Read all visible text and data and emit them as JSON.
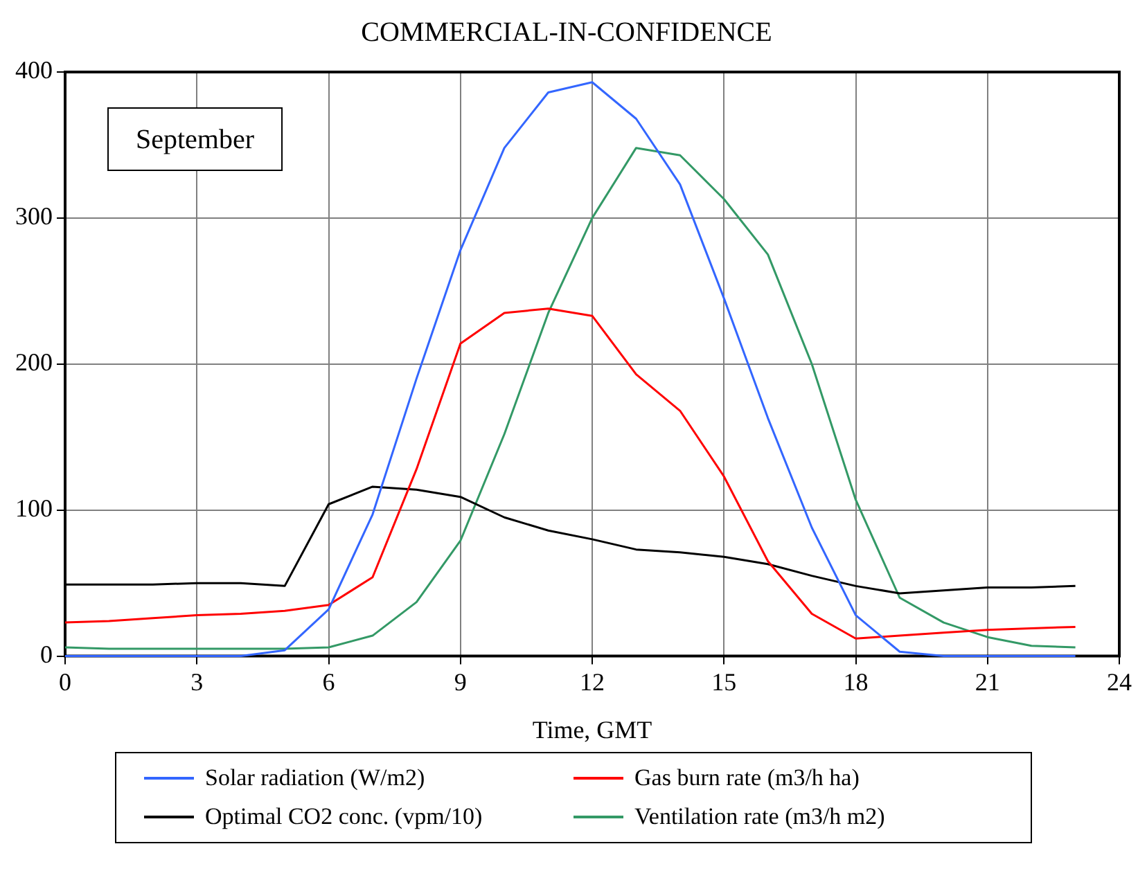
{
  "chart_data": {
    "type": "line",
    "title": "COMMERCIAL-IN-CONFIDENCE",
    "xlabel": "Time, GMT",
    "x": [
      0,
      1,
      2,
      3,
      4,
      5,
      6,
      7,
      8,
      9,
      10,
      11,
      12,
      13,
      14,
      15,
      16,
      17,
      18,
      19,
      20,
      21,
      22,
      23
    ],
    "series": [
      {
        "name": "Solar radiation (W/m2)",
        "color": "#3366ff",
        "values": [
          0,
          0,
          0,
          0,
          0,
          4,
          32,
          97,
          190,
          278,
          348,
          386,
          393,
          368,
          323,
          245,
          163,
          88,
          28,
          3,
          0,
          0,
          0,
          0
        ]
      },
      {
        "name": "Gas burn rate (m3/h ha)",
        "color": "#ff0000",
        "values": [
          23,
          24,
          26,
          28,
          29,
          31,
          35,
          54,
          128,
          214,
          235,
          238,
          233,
          193,
          168,
          123,
          65,
          29,
          12,
          14,
          16,
          18,
          19,
          20
        ]
      },
      {
        "name": "Optimal CO2 conc. (vpm/10)",
        "color": "#000000",
        "values": [
          49,
          49,
          49,
          50,
          50,
          48,
          104,
          116,
          114,
          109,
          95,
          86,
          80,
          73,
          71,
          68,
          63,
          55,
          48,
          43,
          45,
          47,
          47,
          48
        ]
      },
      {
        "name": "Ventilation rate (m3/h m2)",
        "color": "#339966",
        "values": [
          6,
          5,
          5,
          5,
          5,
          5,
          6,
          14,
          37,
          79,
          152,
          235,
          300,
          348,
          343,
          313,
          275,
          200,
          107,
          40,
          23,
          13,
          7,
          6
        ]
      }
    ],
    "xlim": [
      0,
      24
    ],
    "xticks": [
      0,
      3,
      6,
      9,
      12,
      15,
      18,
      21,
      24
    ],
    "ylim": [
      0,
      400
    ],
    "yticks": [
      0,
      100,
      200,
      300,
      400
    ],
    "grid": true,
    "legend": "bottom",
    "marker": "none",
    "line_style": "solid",
    "annotations": [
      "September"
    ]
  }
}
